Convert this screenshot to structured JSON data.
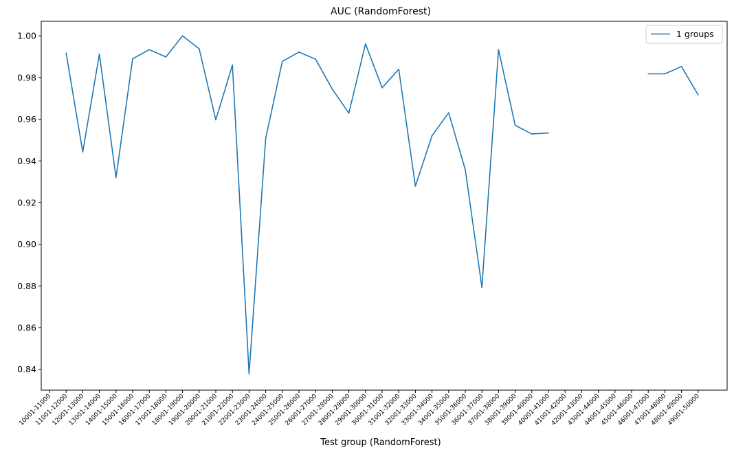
{
  "chart_data": {
    "type": "line",
    "title": "AUC (RandomForest)",
    "xlabel": "Test group (RandomForest)",
    "ylabel": "",
    "ylim": [
      0.83,
      1.007
    ],
    "yticks": [
      0.84,
      0.86,
      0.88,
      0.9,
      0.92,
      0.94,
      0.96,
      0.98,
      1.0
    ],
    "ytick_labels": [
      "0.84",
      "0.86",
      "0.88",
      "0.90",
      "0.92",
      "0.94",
      "0.96",
      "0.98",
      "1.00"
    ],
    "grid": false,
    "legend_position": "top-right",
    "categories": [
      "10001-11000",
      "11001-12000",
      "12001-13000",
      "13001-14000",
      "14001-15000",
      "15001-16000",
      "16001-17000",
      "17001-18000",
      "18001-19000",
      "19001-20000",
      "20001-21000",
      "21001-22000",
      "22001-23000",
      "23001-24000",
      "24001-25000",
      "25001-26000",
      "26001-27000",
      "27001-28000",
      "28001-29000",
      "29001-30000",
      "30001-31000",
      "31001-32000",
      "32001-33000",
      "33001-34000",
      "34001-35000",
      "35001-36000",
      "36001-37000",
      "37001-38000",
      "38001-39000",
      "39001-40000",
      "40001-41000",
      "41001-42000",
      "42001-43000",
      "43001-44000",
      "44001-45000",
      "45001-46000",
      "46001-47000",
      "47001-48000",
      "48001-49000",
      "49001-50000"
    ],
    "series": [
      {
        "name": "1 groups",
        "color": "#1f77b4",
        "values": [
          null,
          0.9918,
          0.9443,
          0.9912,
          0.932,
          0.989,
          0.9934,
          0.9899,
          1.0,
          0.9938,
          0.9597,
          0.986,
          0.8378,
          0.9508,
          0.9878,
          0.9922,
          0.9888,
          0.9745,
          0.9629,
          0.9962,
          0.9751,
          0.984,
          0.9279,
          0.9521,
          0.9631,
          0.9358,
          0.8793,
          0.9934,
          0.9571,
          0.9529,
          0.9534,
          null,
          null,
          null,
          null,
          null,
          0.9818,
          0.9818,
          0.9853,
          0.9717
        ]
      }
    ]
  }
}
